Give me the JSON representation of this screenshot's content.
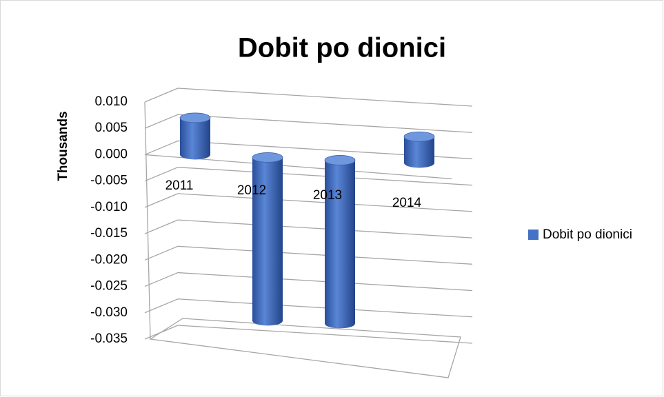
{
  "chart_data": {
    "type": "bar3d",
    "title": "Dobit po dionici",
    "y_label": "Thousands",
    "categories": [
      "2011",
      "2012",
      "2013",
      "2014"
    ],
    "series": [
      {
        "name": "Dobit po dionici",
        "color": "#4472c4",
        "values": [
          0.007,
          -0.031,
          -0.031,
          0.005
        ]
      }
    ],
    "ylim": [
      -0.035,
      0.01
    ],
    "yticks": [
      {
        "value": 0.01,
        "label": "0.010"
      },
      {
        "value": 0.005,
        "label": "0.005"
      },
      {
        "value": 0,
        "label": "0.000"
      },
      {
        "value": -0.005,
        "label": "-0.005"
      },
      {
        "value": -0.01,
        "label": "-0.010"
      },
      {
        "value": -0.015,
        "label": "-0.015"
      },
      {
        "value": -0.02,
        "label": "-0.020"
      },
      {
        "value": -0.025,
        "label": "-0.025"
      },
      {
        "value": -0.03,
        "label": "-0.030"
      },
      {
        "value": -0.035,
        "label": "-0.035"
      }
    ],
    "grid": true,
    "legend": "right"
  }
}
